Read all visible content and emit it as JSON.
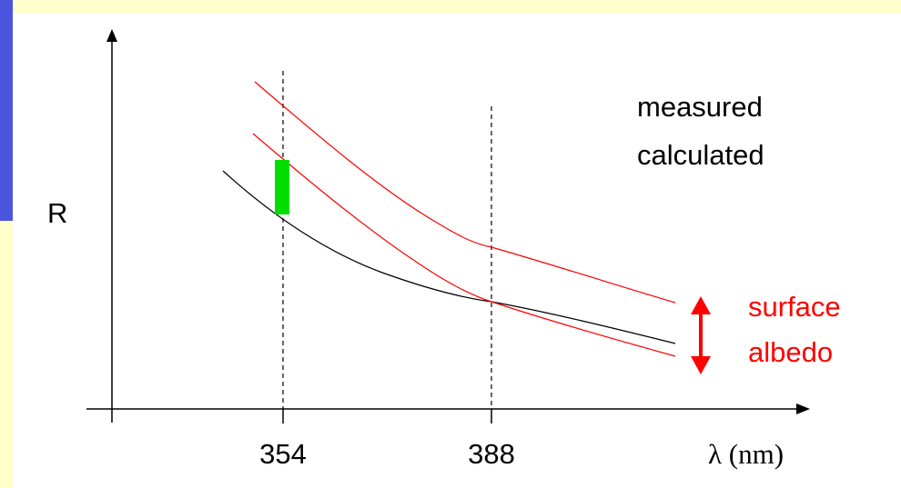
{
  "chart_data": {
    "type": "line",
    "ylabel": "R",
    "xlabel": "λ (nm)",
    "ticks": [
      "354",
      "388"
    ],
    "legend": [
      "measured",
      "calculated"
    ],
    "annotation": [
      "surface",
      "albedo"
    ],
    "series": [
      {
        "color": "#000000"
      },
      {
        "color": "#ff0000"
      },
      {
        "color": "#ff0000"
      }
    ],
    "highlight_color": "#00dd00"
  },
  "colors": {
    "band": "#ffffcc",
    "blue_bar": "#4a55dd",
    "red": "#ff0000",
    "green": "#00dd00"
  }
}
